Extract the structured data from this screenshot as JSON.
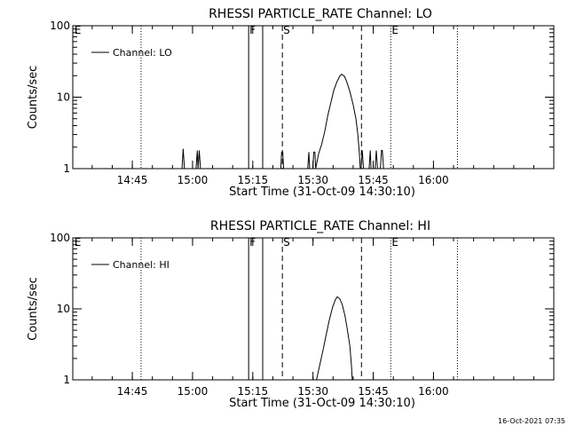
{
  "footer_timestamp": "16-Oct-2021 07:35",
  "chart_data": [
    {
      "type": "line",
      "title": "RHESSI PARTICLE_RATE Channel: LO",
      "xlabel": "Start Time (31-Oct-09 14:30:10)",
      "ylabel": "Counts/sec",
      "yscale": "log",
      "ylim": [
        1,
        100
      ],
      "xlim_minutes": [
        0,
        119.8
      ],
      "yticks": [
        {
          "value": 1,
          "label": "1"
        },
        {
          "value": 10,
          "label": "10"
        },
        {
          "value": 100,
          "label": "100"
        }
      ],
      "xticks": [
        {
          "minutes": 14.83,
          "label": "14:45"
        },
        {
          "minutes": 29.83,
          "label": "15:00"
        },
        {
          "minutes": 44.83,
          "label": "15:15"
        },
        {
          "minutes": 59.83,
          "label": "15:30"
        },
        {
          "minutes": 74.83,
          "label": "15:45"
        },
        {
          "minutes": 89.83,
          "label": "16:00"
        }
      ],
      "legend": {
        "label": "Channel: LO",
        "position": "top-left"
      },
      "markers": [
        {
          "minutes": 0.2,
          "style": "none",
          "label": "E"
        },
        {
          "minutes": 17.0,
          "style": "dotted",
          "label": ""
        },
        {
          "minutes": 43.8,
          "style": "solid",
          "label": "F"
        },
        {
          "minutes": 47.3,
          "style": "solid",
          "label": ""
        },
        {
          "minutes": 52.2,
          "style": "dashed",
          "label": "S"
        },
        {
          "minutes": 71.9,
          "style": "dashed",
          "label": ""
        },
        {
          "minutes": 79.2,
          "style": "dotted",
          "label": "E"
        },
        {
          "minutes": 95.8,
          "style": "dotted",
          "label": ""
        }
      ],
      "series": [
        {
          "name": "Channel: LO",
          "segments": [
            [
              [
                27.2,
                1
              ],
              [
                27.5,
                1.9
              ],
              [
                27.8,
                1
              ]
            ],
            [
              [
                30.7,
                1
              ],
              [
                31.0,
                1.8
              ],
              [
                31.2,
                1
              ],
              [
                31.5,
                1.8
              ],
              [
                31.8,
                1
              ]
            ],
            [
              [
                51.8,
                1
              ],
              [
                52.0,
                1.7
              ],
              [
                52.3,
                1.7
              ],
              [
                52.5,
                1
              ]
            ],
            [
              [
                58.5,
                1
              ],
              [
                58.8,
                1.7
              ],
              [
                59.0,
                1
              ]
            ],
            [
              [
                59.8,
                1
              ],
              [
                60.0,
                1.7
              ],
              [
                60.3,
                1.7
              ],
              [
                60.5,
                1
              ],
              [
                61.2,
                1.6
              ],
              [
                62.0,
                2.2
              ],
              [
                62.8,
                3.4
              ],
              [
                63.5,
                5.5
              ],
              [
                64.3,
                8.5
              ],
              [
                65.0,
                12.5
              ],
              [
                65.8,
                16.5
              ],
              [
                66.5,
                19.8
              ],
              [
                67.0,
                21
              ],
              [
                67.7,
                19.5
              ],
              [
                68.3,
                16.0
              ],
              [
                69.0,
                12.0
              ],
              [
                69.8,
                8.0
              ],
              [
                70.5,
                5.0
              ],
              [
                71.0,
                3.0
              ],
              [
                71.4,
                1.6
              ],
              [
                71.6,
                1
              ]
            ],
            [
              [
                71.8,
                1
              ],
              [
                72.1,
                1.8
              ],
              [
                72.4,
                1
              ]
            ],
            [
              [
                73.8,
                1
              ],
              [
                74.1,
                1.8
              ],
              [
                74.3,
                1
              ]
            ],
            [
              [
                75.3,
                1
              ],
              [
                75.6,
                1.8
              ],
              [
                75.9,
                1
              ],
              [
                76.6,
                1
              ],
              [
                76.9,
                1.8
              ],
              [
                77.1,
                1.8
              ],
              [
                77.4,
                1
              ]
            ]
          ]
        }
      ]
    },
    {
      "type": "line",
      "title": "RHESSI PARTICLE_RATE Channel: HI",
      "xlabel": "Start Time (31-Oct-09 14:30:10)",
      "ylabel": "Counts/sec",
      "yscale": "log",
      "ylim": [
        1,
        100
      ],
      "xlim_minutes": [
        0,
        119.8
      ],
      "yticks": [
        {
          "value": 1,
          "label": "1"
        },
        {
          "value": 10,
          "label": "10"
        },
        {
          "value": 100,
          "label": "100"
        }
      ],
      "xticks": [
        {
          "minutes": 14.83,
          "label": "14:45"
        },
        {
          "minutes": 29.83,
          "label": "15:00"
        },
        {
          "minutes": 44.83,
          "label": "15:15"
        },
        {
          "minutes": 59.83,
          "label": "15:30"
        },
        {
          "minutes": 74.83,
          "label": "15:45"
        },
        {
          "minutes": 89.83,
          "label": "16:00"
        }
      ],
      "legend": {
        "label": "Channel: HI",
        "position": "top-left"
      },
      "markers": [
        {
          "minutes": 0.2,
          "style": "none",
          "label": "E"
        },
        {
          "minutes": 17.0,
          "style": "dotted",
          "label": ""
        },
        {
          "minutes": 43.8,
          "style": "solid",
          "label": "F"
        },
        {
          "minutes": 47.3,
          "style": "solid",
          "label": ""
        },
        {
          "minutes": 52.2,
          "style": "dashed",
          "label": "S"
        },
        {
          "minutes": 71.9,
          "style": "dashed",
          "label": ""
        },
        {
          "minutes": 79.2,
          "style": "dotted",
          "label": "E"
        },
        {
          "minutes": 95.8,
          "style": "dotted",
          "label": ""
        }
      ],
      "series": [
        {
          "name": "Channel: HI",
          "segments": [
            [
              [
                60.7,
                1
              ],
              [
                61.5,
                1.6
              ],
              [
                62.3,
                2.6
              ],
              [
                63.1,
                4.3
              ],
              [
                63.9,
                7.0
              ],
              [
                64.7,
                10.5
              ],
              [
                65.4,
                13.5
              ],
              [
                65.9,
                14.8
              ],
              [
                66.5,
                13.8
              ],
              [
                67.1,
                11.5
              ],
              [
                67.8,
                8.0
              ],
              [
                68.4,
                5.0
              ],
              [
                69.0,
                3.0
              ],
              [
                69.4,
                1.6
              ],
              [
                69.6,
                1
              ]
            ]
          ]
        }
      ]
    }
  ]
}
